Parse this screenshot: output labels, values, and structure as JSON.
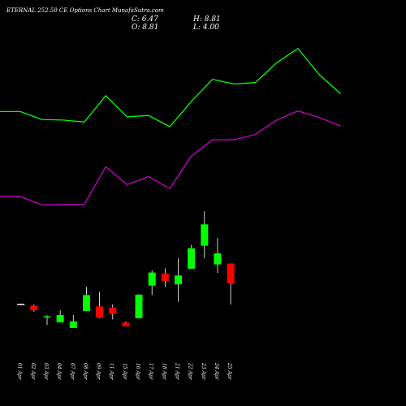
{
  "header": {
    "title": "ETERNAL 252.50 CE Options Chart MunafaSutra.com",
    "close": "C: 6.47",
    "open": "O: 8.81",
    "high": "H: 8.81",
    "low": "L: 4.00"
  },
  "colors": {
    "background": "#000000",
    "upper_line": "#00ff00",
    "lower_line": "#cc00cc",
    "bull": "#00ff00",
    "bear": "#ff0000",
    "wick": "#ffffff",
    "text": "#ffffff"
  },
  "chart_data": [
    {
      "type": "line",
      "series": [
        {
          "values": [
            10.2,
            10.2,
            9.0,
            8.9,
            8.6,
            12.6,
            9.4,
            9.6,
            7.9,
            11.7,
            15.1,
            14.4,
            14.6,
            17.6,
            19.8,
            15.8,
            12.9
          ]
        },
        {
          "values": [
            -2.7,
            -2.7,
            -4.0,
            -3.9,
            -3.9,
            1.8,
            -0.9,
            0.3,
            -1.5,
            3.4,
            5.9,
            5.9,
            6.7,
            8.9,
            10.3,
            9.3,
            8.0
          ]
        }
      ]
    },
    {
      "type": "candlestick",
      "categories": [
        "01 Apr",
        "02 Apr",
        "03 Apr",
        "04 Apr",
        "07 Apr",
        "08 Apr",
        "09 Apr",
        "11 Apr",
        "15 Apr",
        "16 Apr",
        "17 Apr",
        "18 Apr",
        "21 Apr",
        "22 Apr",
        "23 Apr",
        "24 Apr",
        "25 Apr"
      ],
      "candles": [
        {
          "open": 4.0,
          "close": 4.08,
          "high": 4.08,
          "low": 4.0,
          "dir": "none"
        },
        {
          "open": 3.85,
          "close": 3.34,
          "high": 4.0,
          "low": 3.16,
          "dir": "down"
        },
        {
          "open": 2.54,
          "close": 2.61,
          "high": 2.74,
          "low": 1.59,
          "dir": "up"
        },
        {
          "open": 1.9,
          "close": 2.77,
          "high": 3.32,
          "low": 1.9,
          "dir": "up"
        },
        {
          "open": 1.24,
          "close": 2.02,
          "high": 2.78,
          "low": 1.24,
          "dir": "up"
        },
        {
          "open": 3.23,
          "close": 5.1,
          "high": 6.07,
          "low": 3.23,
          "dir": "up"
        },
        {
          "open": 3.77,
          "close": 2.46,
          "high": 5.5,
          "low": 2.38,
          "dir": "down"
        },
        {
          "open": 3.64,
          "close": 2.9,
          "high": 4.01,
          "low": 2.25,
          "dir": "down"
        },
        {
          "open": 1.88,
          "close": 1.45,
          "high": 2.02,
          "low": 1.45,
          "dir": "down"
        },
        {
          "open": 2.4,
          "close": 5.15,
          "high": 5.2,
          "low": 2.4,
          "dir": "up"
        },
        {
          "open": 6.22,
          "close": 7.75,
          "high": 8.0,
          "low": 5.1,
          "dir": "up"
        },
        {
          "open": 7.64,
          "close": 6.75,
          "high": 8.25,
          "low": 6.05,
          "dir": "down"
        },
        {
          "open": 6.35,
          "close": 7.4,
          "high": 9.4,
          "low": 4.32,
          "dir": "up"
        },
        {
          "open": 8.2,
          "close": 10.6,
          "high": 11.0,
          "low": 8.2,
          "dir": "up"
        },
        {
          "open": 10.9,
          "close": 13.4,
          "high": 14.92,
          "low": 9.4,
          "dir": "up"
        },
        {
          "open": 8.7,
          "close": 10.0,
          "high": 11.8,
          "low": 7.71,
          "dir": "up"
        },
        {
          "open": 8.81,
          "close": 6.47,
          "high": 8.81,
          "low": 4.0,
          "dir": "down"
        }
      ]
    }
  ]
}
